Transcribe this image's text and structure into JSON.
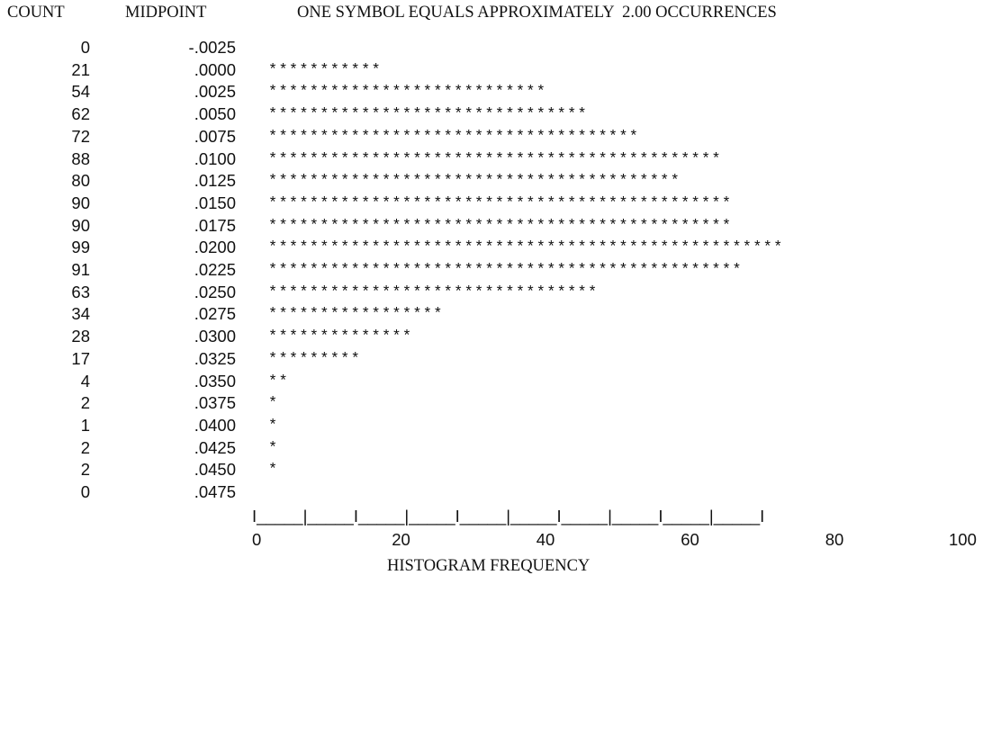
{
  "header": {
    "count_label": "COUNT",
    "midpoint_label": "MIDPOINT",
    "scale_label": "ONE SYMBOL EQUALS APPROXIMATELY  2.00 OCCURRENCES"
  },
  "chart_data": {
    "type": "bar",
    "orientation": "horizontal",
    "symbol": "*",
    "symbol_value": 2.0,
    "xlabel": "HISTOGRAM FREQUENCY",
    "xlim": [
      0,
      100
    ],
    "x_ticks": [
      "0",
      "20",
      "40",
      "60",
      "80",
      "100"
    ],
    "axis_line": "I_____|_____I_____|_____I_____|_____I_____|_____I_____|_____I",
    "categories": [
      "-.0025",
      ".0000",
      ".0025",
      ".0050",
      ".0075",
      ".0100",
      ".0125",
      ".0150",
      ".0175",
      ".0200",
      ".0225",
      ".0250",
      ".0275",
      ".0300",
      ".0325",
      ".0350",
      ".0375",
      ".0400",
      ".0425",
      ".0450",
      ".0475"
    ],
    "values": [
      0,
      21,
      54,
      62,
      72,
      88,
      80,
      90,
      90,
      99,
      91,
      63,
      34,
      28,
      17,
      4,
      2,
      1,
      2,
      2,
      0
    ],
    "counts": [
      "0",
      "21",
      "54",
      "62",
      "72",
      "88",
      "80",
      "90",
      "90",
      "99",
      "91",
      "63",
      "34",
      "28",
      "17",
      "4",
      "2",
      "1",
      "2",
      "2",
      "0"
    ],
    "symbol_counts": [
      0,
      11,
      27,
      31,
      36,
      44,
      40,
      45,
      45,
      50,
      46,
      32,
      17,
      14,
      9,
      2,
      1,
      1,
      1,
      1,
      0
    ]
  }
}
